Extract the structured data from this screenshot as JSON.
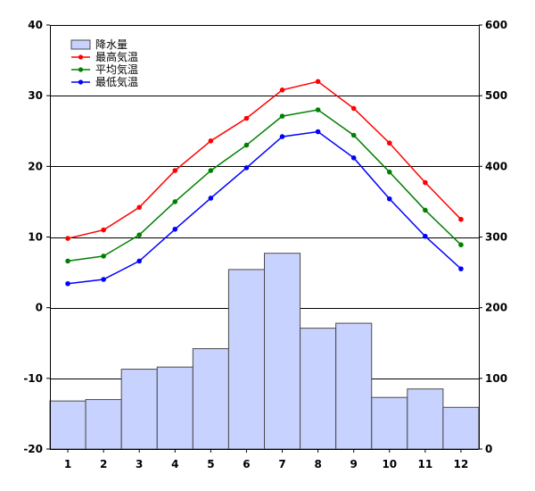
{
  "chart_data": {
    "type": "bar+line",
    "categories": [
      "1",
      "2",
      "3",
      "4",
      "5",
      "6",
      "7",
      "8",
      "9",
      "10",
      "11",
      "12"
    ],
    "y_left": {
      "min": -20,
      "max": 40,
      "ticks": [
        -20,
        -10,
        0,
        10,
        20,
        30,
        40
      ]
    },
    "y_right": {
      "min": 0,
      "max": 600,
      "ticks": [
        0,
        100,
        200,
        300,
        400,
        500,
        600
      ]
    },
    "grid": "horizontal",
    "legend_position": "top-left",
    "bar_series": {
      "name": "降水量",
      "axis": "right",
      "color": "#c8d2ff",
      "edge_color": "#4a4a4a",
      "values": [
        68,
        70,
        113,
        116,
        142,
        254,
        277,
        171,
        178,
        73,
        85,
        59
      ]
    },
    "line_series": [
      {
        "name": "最高気温",
        "axis": "left",
        "color": "#ff0000",
        "values": [
          9.8,
          11.0,
          14.2,
          19.4,
          23.6,
          26.8,
          30.8,
          32.0,
          28.2,
          23.3,
          17.7,
          12.5
        ]
      },
      {
        "name": "平均気温",
        "axis": "left",
        "color": "#008000",
        "values": [
          6.6,
          7.3,
          10.3,
          15.0,
          19.4,
          23.0,
          27.1,
          28.0,
          24.4,
          19.2,
          13.8,
          8.9
        ]
      },
      {
        "name": "最低気温",
        "axis": "left",
        "color": "#0000ff",
        "values": [
          3.4,
          4.0,
          6.6,
          11.1,
          15.5,
          19.8,
          24.2,
          24.9,
          21.2,
          15.4,
          10.1,
          5.5
        ]
      }
    ]
  }
}
